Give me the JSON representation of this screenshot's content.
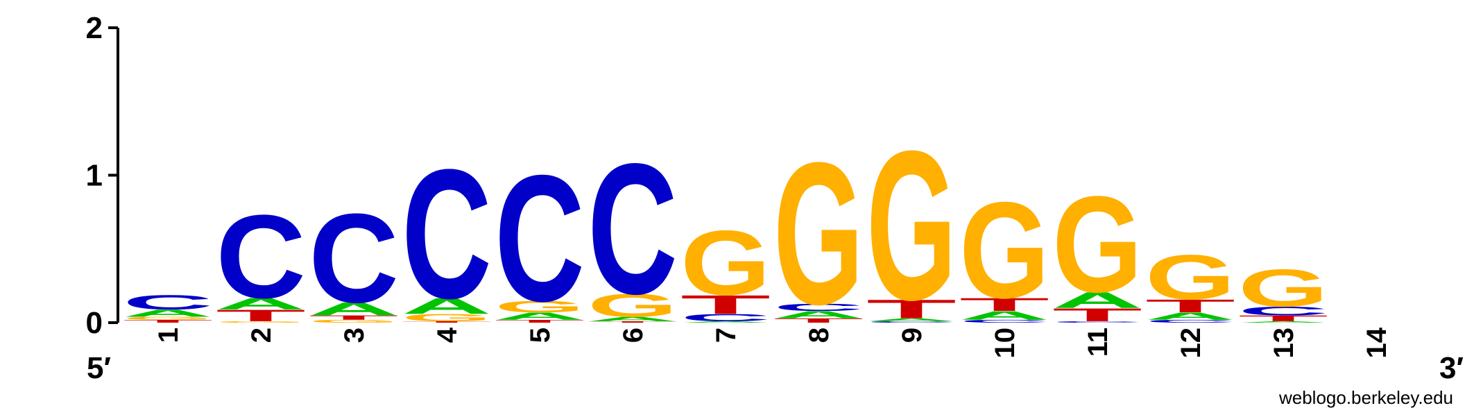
{
  "chart_data": {
    "type": "sequence-logo",
    "title": "",
    "xlabel": "",
    "ylabel": "",
    "ylim": [
      0,
      2
    ],
    "y_ticks": [
      "0",
      "1",
      "2"
    ],
    "x_end_labels": {
      "left": "5′",
      "right": "3′"
    },
    "credit": "weblogo.berkeley.edu",
    "colors": {
      "A": "#00c400",
      "C": "#0000c8",
      "G": "#ffb000",
      "T": "#d00000"
    },
    "positions": [
      {
        "label": "1",
        "stack": [
          {
            "base": "T",
            "bits": 0.02
          },
          {
            "base": "G",
            "bits": 0.02
          },
          {
            "base": "A",
            "bits": 0.05
          },
          {
            "base": "C",
            "bits": 0.1
          }
        ]
      },
      {
        "label": "2",
        "stack": [
          {
            "base": "G",
            "bits": 0.01
          },
          {
            "base": "T",
            "bits": 0.08
          },
          {
            "base": "A",
            "bits": 0.08
          },
          {
            "base": "C",
            "bits": 0.58
          }
        ]
      },
      {
        "label": "3",
        "stack": [
          {
            "base": "G",
            "bits": 0.02
          },
          {
            "base": "T",
            "bits": 0.03
          },
          {
            "base": "A",
            "bits": 0.09
          },
          {
            "base": "C",
            "bits": 0.62
          }
        ]
      },
      {
        "label": "4",
        "stack": [
          {
            "base": "T",
            "bits": 0.01
          },
          {
            "base": "G",
            "bits": 0.05
          },
          {
            "base": "A",
            "bits": 0.11
          },
          {
            "base": "C",
            "bits": 0.9
          }
        ]
      },
      {
        "label": "5",
        "stack": [
          {
            "base": "T",
            "bits": 0.02
          },
          {
            "base": "A",
            "bits": 0.05
          },
          {
            "base": "G",
            "bits": 0.08
          },
          {
            "base": "C",
            "bits": 0.88
          }
        ]
      },
      {
        "label": "6",
        "stack": [
          {
            "base": "T",
            "bits": 0.01
          },
          {
            "base": "A",
            "bits": 0.03
          },
          {
            "base": "G",
            "bits": 0.16
          },
          {
            "base": "C",
            "bits": 0.91
          }
        ]
      },
      {
        "label": "7",
        "stack": [
          {
            "base": "A",
            "bits": 0.01
          },
          {
            "base": "C",
            "bits": 0.05
          },
          {
            "base": "T",
            "bits": 0.13
          },
          {
            "base": "G",
            "bits": 0.45
          }
        ]
      },
      {
        "label": "8",
        "stack": [
          {
            "base": "T",
            "bits": 0.03
          },
          {
            "base": "A",
            "bits": 0.05
          },
          {
            "base": "C",
            "bits": 0.05
          },
          {
            "base": "G",
            "bits": 0.99
          }
        ]
      },
      {
        "label": "9",
        "stack": [
          {
            "base": "C",
            "bits": 0.01
          },
          {
            "base": "A",
            "bits": 0.02
          },
          {
            "base": "T",
            "bits": 0.13
          },
          {
            "base": "G",
            "bits": 1.04
          }
        ]
      },
      {
        "label": "10",
        "stack": [
          {
            "base": "C",
            "bits": 0.02
          },
          {
            "base": "A",
            "bits": 0.06
          },
          {
            "base": "T",
            "bits": 0.09
          },
          {
            "base": "G",
            "bits": 0.67
          }
        ]
      },
      {
        "label": "11",
        "stack": [
          {
            "base": "C",
            "bits": 0.01
          },
          {
            "base": "T",
            "bits": 0.09
          },
          {
            "base": "A",
            "bits": 0.11
          },
          {
            "base": "G",
            "bits": 0.67
          }
        ]
      },
      {
        "label": "12",
        "stack": [
          {
            "base": "C",
            "bits": 0.02
          },
          {
            "base": "A",
            "bits": 0.05
          },
          {
            "base": "T",
            "bits": 0.09
          },
          {
            "base": "G",
            "bits": 0.31
          }
        ]
      },
      {
        "label": "13",
        "stack": [
          {
            "base": "A",
            "bits": 0.01
          },
          {
            "base": "T",
            "bits": 0.04
          },
          {
            "base": "C",
            "bits": 0.06
          },
          {
            "base": "G",
            "bits": 0.26
          }
        ]
      },
      {
        "label": "14",
        "stack": []
      }
    ]
  }
}
